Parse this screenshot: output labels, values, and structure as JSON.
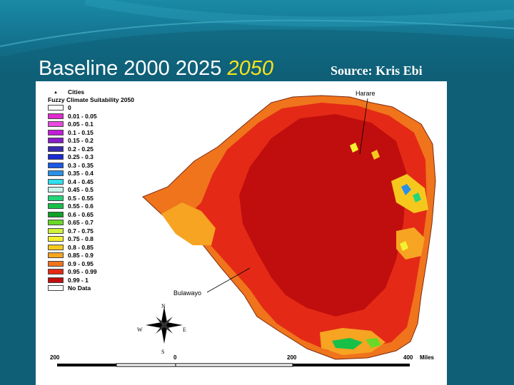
{
  "slide": {
    "title_prefix": "Baseline 2000 2025 ",
    "title_highlight": "2050",
    "source": "Source:  Kris Ebi",
    "colors": {
      "background": "#0f5f77",
      "highlight": "#f4e41b"
    }
  },
  "map": {
    "cities_label": "Cities",
    "legend_title": "Fuzzy Climate Suitability 2050",
    "legend": [
      {
        "label": "0",
        "color": "#ffffff"
      },
      {
        "label": "0.01 - 0.05",
        "color": "#e02ad0"
      },
      {
        "label": "0.05 - 0.1",
        "color": "#e84ae0"
      },
      {
        "label": "0.1 - 0.15",
        "color": "#c21ed8"
      },
      {
        "label": "0.15 - 0.2",
        "color": "#8a1cc8"
      },
      {
        "label": "0.2 - 0.25",
        "color": "#3a2ab0"
      },
      {
        "label": "0.25 - 0.3",
        "color": "#1a2ad6"
      },
      {
        "label": "0.3 - 0.35",
        "color": "#1c58e8"
      },
      {
        "label": "0.35 - 0.4",
        "color": "#2a8fe8"
      },
      {
        "label": "0.4 - 0.45",
        "color": "#2ee0f0"
      },
      {
        "label": "0.45 - 0.5",
        "color": "#c8f4ec"
      },
      {
        "label": "0.5 - 0.55",
        "color": "#22d67a"
      },
      {
        "label": "0.55 - 0.6",
        "color": "#18c048"
      },
      {
        "label": "0.6 - 0.65",
        "color": "#10a228"
      },
      {
        "label": "0.65 - 0.7",
        "color": "#6ad826"
      },
      {
        "label": "0.7 - 0.75",
        "color": "#d0f23a"
      },
      {
        "label": "0.75 - 0.8",
        "color": "#f4f230"
      },
      {
        "label": "0.8 - 0.85",
        "color": "#f6c81e"
      },
      {
        "label": "0.85 - 0.9",
        "color": "#f6a422"
      },
      {
        "label": "0.9 - 0.95",
        "color": "#f0741c"
      },
      {
        "label": "0.95 - 0.99",
        "color": "#e42a16"
      },
      {
        "label": "0.99 - 1",
        "color": "#c00e0e"
      },
      {
        "label": "No Data",
        "color": "#ffffff"
      }
    ],
    "cities": {
      "harare": "Harare",
      "bulawayo": "Bulawayo"
    },
    "compass": {
      "n": "N",
      "s": "S",
      "e": "E",
      "w": "W"
    },
    "scale": {
      "left": "200",
      "zero": "0",
      "mid": "200",
      "right": "400",
      "unit": "Miles"
    }
  }
}
